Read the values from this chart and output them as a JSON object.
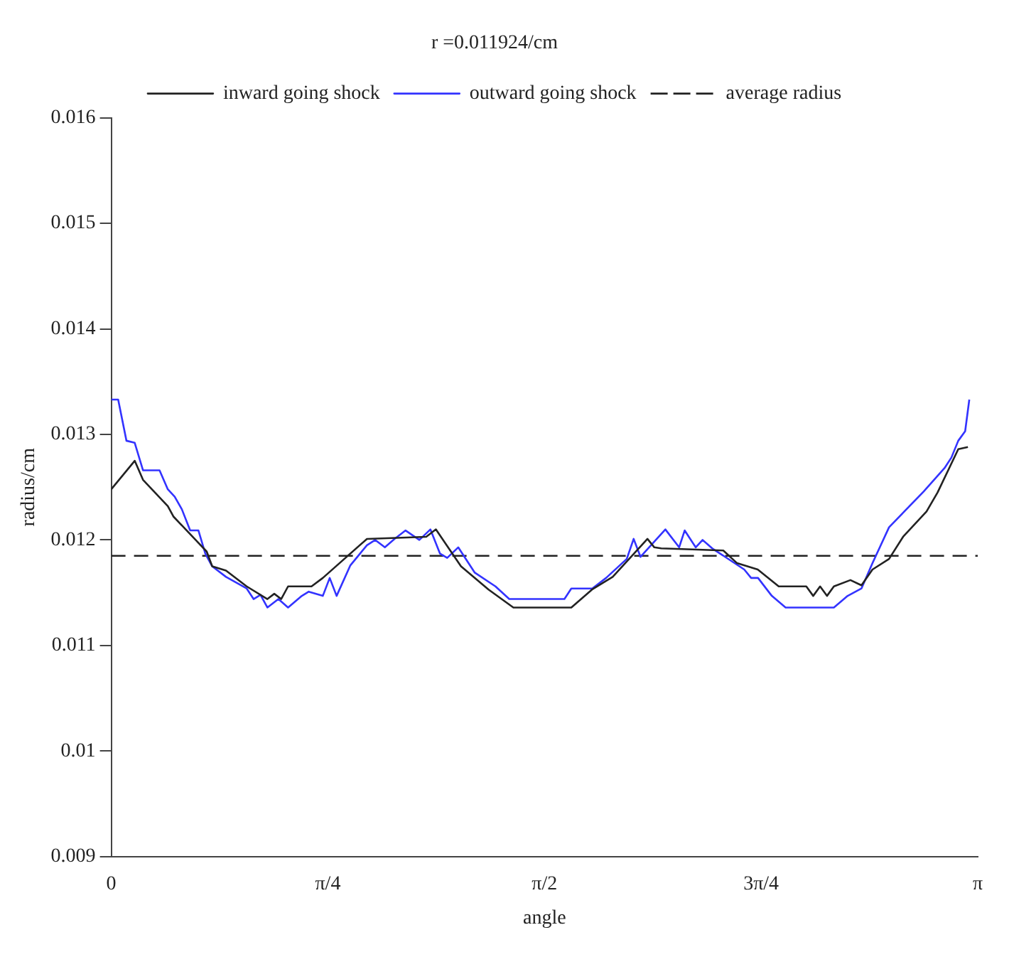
{
  "chart_data": {
    "type": "line",
    "title": "r =0.011924/cm",
    "xlabel": "angle",
    "ylabel": "radius/cm",
    "xlim": [
      0,
      3.1416
    ],
    "xticks": [
      {
        "value": 0,
        "label": "0"
      },
      {
        "value": 0.7854,
        "label": "π/4"
      },
      {
        "value": 1.5708,
        "label": "π/2"
      },
      {
        "value": 2.3562,
        "label": "3π/4"
      },
      {
        "value": 3.1416,
        "label": "π"
      }
    ],
    "ylim": [
      0.009,
      0.016
    ],
    "yticks": [
      0.009,
      0.01,
      0.011,
      0.012,
      0.013,
      0.014,
      0.015,
      0.016
    ],
    "grid": false,
    "legend": "top",
    "line_style": "solid",
    "marker": "none",
    "series": [
      {
        "name": "inward going shock",
        "color": "#222222",
        "x": [
          0,
          0.085,
          0.115,
          0.205,
          0.226,
          0.346,
          0.366,
          0.416,
          0.491,
          0.566,
          0.591,
          0.616,
          0.641,
          0.726,
          0.767,
          0.927,
          1.142,
          1.177,
          1.268,
          1.368,
          1.458,
          1.668,
          1.743,
          1.818,
          1.944,
          1.969,
          1.994,
          2.219,
          2.269,
          2.344,
          2.42,
          2.52,
          2.545,
          2.57,
          2.595,
          2.62,
          2.68,
          2.72,
          2.76,
          2.82,
          2.871,
          2.956,
          2.996,
          3.071,
          3.106
        ],
        "values": [
          0.01248,
          0.01275,
          0.01257,
          0.01232,
          0.01222,
          0.01189,
          0.01175,
          0.01171,
          0.01156,
          0.01144,
          0.01149,
          0.01144,
          0.01156,
          0.01156,
          0.01164,
          0.01201,
          0.01203,
          0.0121,
          0.01175,
          0.01153,
          0.01136,
          0.01136,
          0.01153,
          0.01165,
          0.01201,
          0.01193,
          0.01192,
          0.0119,
          0.01178,
          0.01172,
          0.01156,
          0.01156,
          0.01147,
          0.01156,
          0.01147,
          0.01156,
          0.01162,
          0.01157,
          0.01172,
          0.01182,
          0.01203,
          0.01227,
          0.01245,
          0.01286,
          0.01288
        ]
      },
      {
        "name": "outward going shock",
        "color": "#3333ff",
        "x": [
          0,
          0.025,
          0.055,
          0.085,
          0.115,
          0.175,
          0.205,
          0.23,
          0.256,
          0.286,
          0.316,
          0.341,
          0.366,
          0.416,
          0.491,
          0.516,
          0.541,
          0.566,
          0.606,
          0.641,
          0.691,
          0.716,
          0.767,
          0.792,
          0.817,
          0.867,
          0.927,
          0.957,
          0.992,
          1.027,
          1.067,
          1.117,
          1.157,
          1.192,
          1.218,
          1.258,
          1.318,
          1.393,
          1.443,
          1.643,
          1.668,
          1.744,
          1.794,
          1.869,
          1.894,
          1.919,
          2.009,
          2.059,
          2.079,
          2.119,
          2.144,
          2.179,
          2.295,
          2.32,
          2.345,
          2.395,
          2.445,
          2.62,
          2.67,
          2.72,
          2.76,
          2.82,
          2.946,
          3.021,
          3.046,
          3.071,
          3.096,
          3.111
        ],
        "values": [
          0.01333,
          0.01333,
          0.01294,
          0.01292,
          0.01266,
          0.01266,
          0.01248,
          0.01241,
          0.01229,
          0.01209,
          0.01209,
          0.01187,
          0.01175,
          0.01165,
          0.01154,
          0.01144,
          0.01148,
          0.01136,
          0.01144,
          0.01136,
          0.01147,
          0.01151,
          0.01147,
          0.01164,
          0.01147,
          0.01176,
          0.01195,
          0.012,
          0.01193,
          0.01201,
          0.01209,
          0.012,
          0.0121,
          0.01187,
          0.01183,
          0.01193,
          0.01169,
          0.01156,
          0.01144,
          0.01144,
          0.01154,
          0.01154,
          0.01164,
          0.01182,
          0.01201,
          0.01184,
          0.0121,
          0.01193,
          0.01209,
          0.01193,
          0.012,
          0.01192,
          0.01172,
          0.01164,
          0.01164,
          0.01147,
          0.01136,
          0.01136,
          0.01147,
          0.01154,
          0.01178,
          0.01212,
          0.01246,
          0.01268,
          0.01278,
          0.01294,
          0.01303,
          0.01333
        ]
      }
    ],
    "ref_lines": [
      {
        "axis": "y",
        "value": 0.01185,
        "label": "average radius",
        "color": "#222222",
        "line_style": "dashed"
      }
    ]
  }
}
